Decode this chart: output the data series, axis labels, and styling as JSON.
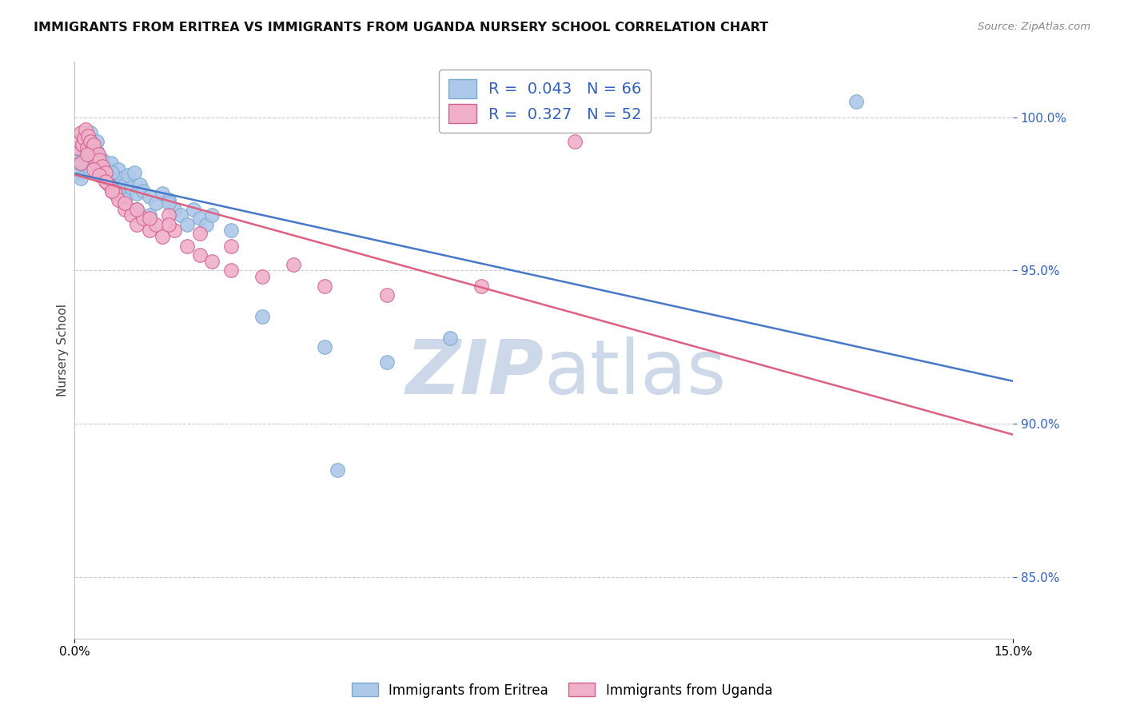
{
  "title": "IMMIGRANTS FROM ERITREA VS IMMIGRANTS FROM UGANDA NURSERY SCHOOL CORRELATION CHART",
  "source": "Source: ZipAtlas.com",
  "ylabel": "Nursery School",
  "xlim": [
    0.0,
    15.0
  ],
  "ylim": [
    83.0,
    101.8
  ],
  "yticks": [
    85.0,
    90.0,
    95.0,
    100.0
  ],
  "series_eritrea": {
    "label": "Immigrants from Eritrea",
    "color": "#adc8e8",
    "edge_color": "#7aaad0",
    "R": 0.043,
    "N": 66,
    "x": [
      0.05,
      0.08,
      0.1,
      0.12,
      0.13,
      0.15,
      0.16,
      0.18,
      0.2,
      0.22,
      0.25,
      0.27,
      0.3,
      0.32,
      0.35,
      0.38,
      0.4,
      0.42,
      0.45,
      0.48,
      0.5,
      0.55,
      0.58,
      0.6,
      0.65,
      0.7,
      0.75,
      0.8,
      0.85,
      0.9,
      0.95,
      1.0,
      1.05,
      1.1,
      1.2,
      1.3,
      1.4,
      1.5,
      1.6,
      1.7,
      1.8,
      1.9,
      2.0,
      2.1,
      2.2,
      0.1,
      0.15,
      0.2,
      0.25,
      0.3,
      0.35,
      0.4,
      0.5,
      0.6,
      0.7,
      0.8,
      1.0,
      1.2,
      1.5,
      2.5,
      3.0,
      4.0,
      5.0,
      6.0,
      12.5,
      4.2
    ],
    "y": [
      98.2,
      98.5,
      99.0,
      98.8,
      99.2,
      99.0,
      98.7,
      99.3,
      98.9,
      99.1,
      99.5,
      98.6,
      98.8,
      99.0,
      99.2,
      98.5,
      98.7,
      98.3,
      98.6,
      98.4,
      98.2,
      98.0,
      98.5,
      98.1,
      97.9,
      98.3,
      98.0,
      97.8,
      98.1,
      97.7,
      98.2,
      97.5,
      97.8,
      97.6,
      97.4,
      97.2,
      97.5,
      97.3,
      97.0,
      96.8,
      96.5,
      97.0,
      96.7,
      96.5,
      96.8,
      98.0,
      98.5,
      99.2,
      98.3,
      98.6,
      98.9,
      98.4,
      97.9,
      98.2,
      97.5,
      97.3,
      97.0,
      96.8,
      97.2,
      96.3,
      93.5,
      92.5,
      92.0,
      92.8,
      100.5,
      88.5
    ]
  },
  "series_uganda": {
    "label": "Immigrants from Uganda",
    "color": "#f0b0c8",
    "edge_color": "#d06090",
    "R": 0.327,
    "N": 52,
    "x": [
      0.05,
      0.08,
      0.1,
      0.12,
      0.15,
      0.18,
      0.2,
      0.22,
      0.25,
      0.28,
      0.3,
      0.33,
      0.35,
      0.38,
      0.4,
      0.45,
      0.5,
      0.55,
      0.6,
      0.65,
      0.7,
      0.8,
      0.9,
      1.0,
      1.1,
      1.2,
      1.3,
      1.4,
      1.5,
      1.6,
      1.8,
      2.0,
      2.2,
      2.5,
      3.0,
      3.5,
      4.0,
      5.0,
      0.1,
      0.2,
      0.3,
      0.4,
      0.5,
      0.6,
      0.8,
      1.0,
      1.2,
      1.5,
      2.0,
      2.5,
      6.5,
      8.0
    ],
    "y": [
      99.0,
      99.2,
      99.5,
      99.1,
      99.3,
      99.6,
      99.0,
      99.4,
      99.2,
      98.9,
      99.1,
      98.7,
      98.5,
      98.8,
      98.6,
      98.4,
      98.2,
      97.8,
      97.6,
      97.5,
      97.3,
      97.0,
      96.8,
      96.5,
      96.7,
      96.3,
      96.5,
      96.1,
      96.8,
      96.3,
      95.8,
      95.5,
      95.3,
      95.0,
      94.8,
      95.2,
      94.5,
      94.2,
      98.5,
      98.8,
      98.3,
      98.1,
      97.9,
      97.6,
      97.2,
      97.0,
      96.7,
      96.5,
      96.2,
      95.8,
      94.5,
      99.2
    ]
  },
  "trend_eritrea_color": "#4878c8",
  "trend_uganda_color": "#e06080",
  "grid_color": "#cccccc",
  "background_color": "#ffffff",
  "watermark_zip": "ZIP",
  "watermark_atlas": "atlas",
  "watermark_color": "#cdd8e8",
  "legend_color": "#3060c0"
}
